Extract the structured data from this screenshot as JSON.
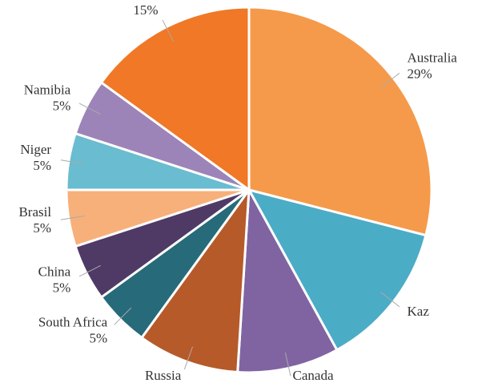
{
  "chart_data": {
    "type": "pie",
    "categories": [
      "Australia",
      "Kaz",
      "Canada",
      "Russia",
      "South Africa",
      "China",
      "Brasil",
      "Niger",
      "Namibia",
      null
    ],
    "values": [
      29,
      13,
      9,
      9,
      5,
      5,
      5,
      5,
      5,
      15
    ],
    "value_labels": [
      "29%",
      null,
      null,
      null,
      "5%",
      "5%",
      "5%",
      "5%",
      "5%",
      "15%"
    ],
    "colors": [
      "#f59a4a",
      "#4bacc6",
      "#8064a2",
      "#b65a2a",
      "#276b7a",
      "#4f3a66",
      "#f7b07a",
      "#6abcd0",
      "#9c84b8",
      "#f07826"
    ]
  }
}
